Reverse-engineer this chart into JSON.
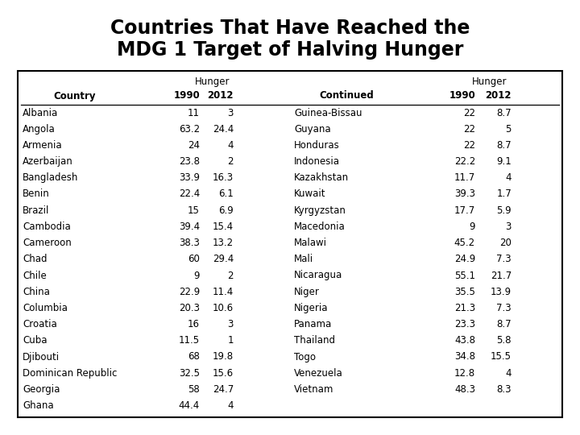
{
  "title_line1": "Countries That Have Reached the",
  "title_line2": "MDG 1 Target of Halving Hunger",
  "title_fontsize": 17,
  "title_fontweight": "bold",
  "title_fontfamily": "Impact",
  "left_countries": [
    "Albania",
    "Angola",
    "Armenia",
    "Azerbaijan",
    "Bangladesh",
    "Benin",
    "Brazil",
    "Cambodia",
    "Cameroon",
    "Chad",
    "Chile",
    "China",
    "Columbia",
    "Croatia",
    "Cuba",
    "Djibouti",
    "Dominican Republic",
    "Georgia",
    "Ghana"
  ],
  "left_1990": [
    11,
    63.2,
    24,
    23.8,
    33.9,
    22.4,
    15,
    39.4,
    38.3,
    60,
    9,
    22.9,
    20.3,
    16,
    11.5,
    68,
    32.5,
    58,
    44.4
  ],
  "left_2012": [
    3,
    24.4,
    4,
    2,
    16.3,
    6.1,
    6.9,
    15.4,
    13.2,
    29.4,
    2,
    11.4,
    10.6,
    3,
    1,
    19.8,
    15.6,
    24.7,
    4
  ],
  "right_countries": [
    "Guinea-Bissau",
    "Guyana",
    "Honduras",
    "Indonesia",
    "Kazakhstan",
    "Kuwait",
    "Kyrgyzstan",
    "Macedonia",
    "Malawi",
    "Mali",
    "Nicaragua",
    "Niger",
    "Nigeria",
    "Panama",
    "Thailand",
    "Togo",
    "Venezuela",
    "Vietnam"
  ],
  "right_1990": [
    22,
    22,
    22,
    22.2,
    11.7,
    39.3,
    17.7,
    9,
    45.2,
    24.9,
    55.1,
    35.5,
    21.3,
    23.3,
    43.8,
    34.8,
    12.8,
    48.3
  ],
  "right_2012": [
    8.7,
    5,
    8.7,
    9.1,
    4,
    1.7,
    5.9,
    3,
    20,
    7.3,
    21.7,
    13.9,
    7.3,
    8.7,
    5.8,
    15.5,
    4,
    8.3
  ],
  "col_header_hunger": "Hunger",
  "col_header_country": "Country",
  "col_header_continued": "Continued",
  "col_header_1990": "1990",
  "col_header_2012": "2012",
  "background_color": "#ffffff",
  "border_color": "#000000",
  "text_color": "#000000",
  "header_fontsize": 8.5,
  "data_fontsize": 8.5,
  "table_font": "DejaVu Sans"
}
